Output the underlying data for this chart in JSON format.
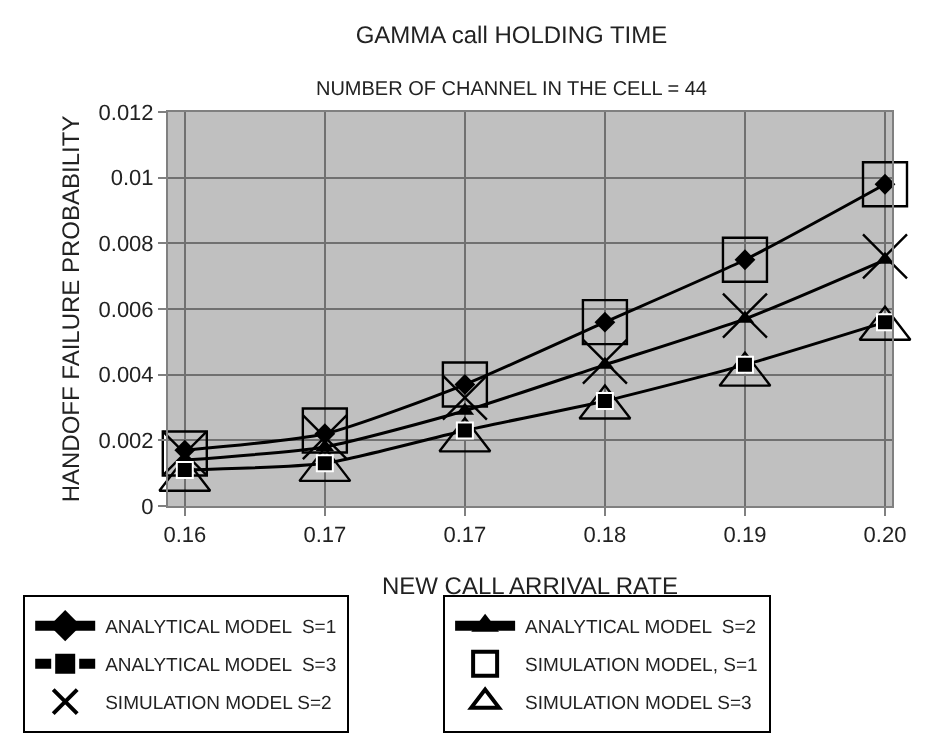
{
  "chart_data": {
    "type": "line",
    "title": "GAMMA call HOLDING TIME",
    "subtitle": "NUMBER OF CHANNEL IN THE CELL = 44",
    "xlabel": "NEW CALL ARRIVAL RATE",
    "ylabel": "HANDOFF FAILURE PROBABILITY",
    "categories": [
      "0.16",
      "0.17",
      "0.17",
      "0.18",
      "0.19",
      "0.20"
    ],
    "ylim": [
      0,
      0.012
    ],
    "yticks": [
      0,
      0.002,
      0.004,
      0.006,
      0.008,
      0.01,
      0.012
    ],
    "grid": true,
    "legend": "bottom",
    "series": [
      {
        "name": "ANALYTICAL MODEL  S=1",
        "color": "#000000",
        "marker": "diamond",
        "values": [
          0.0017,
          0.0022,
          0.0037,
          0.0056,
          0.0075,
          0.0098
        ]
      },
      {
        "name": "ANALYTICAL MODEL  S=2",
        "color": "#000000",
        "marker": "triangle",
        "values": [
          0.0014,
          0.0018,
          0.0029,
          0.0043,
          0.0057,
          0.0075
        ]
      },
      {
        "name": "ANALYTICAL MODEL  S=3",
        "color": "#000000",
        "marker": "square",
        "values": [
          0.0011,
          0.0013,
          0.0023,
          0.0032,
          0.0043,
          0.0056
        ]
      },
      {
        "name": "SIMULATION MODEL, S=1",
        "type": "scatter",
        "color": "#000000",
        "marker": "square",
        "values": [
          0.0016,
          0.0023,
          0.0037,
          0.0056,
          0.0075,
          0.0098
        ]
      },
      {
        "name": "SIMULATION MODEL S=2",
        "type": "scatter",
        "color": "#000000",
        "marker": "cross",
        "values": [
          0.0016,
          0.0021,
          0.0033,
          0.0044,
          0.0058,
          0.0076
        ]
      },
      {
        "name": "SIMULATION MODEL S=3",
        "type": "scatter",
        "color": "#000000",
        "marker": "triangle",
        "values": [
          0.0008,
          0.0011,
          0.002,
          0.003,
          0.004,
          0.0054
        ]
      }
    ]
  }
}
